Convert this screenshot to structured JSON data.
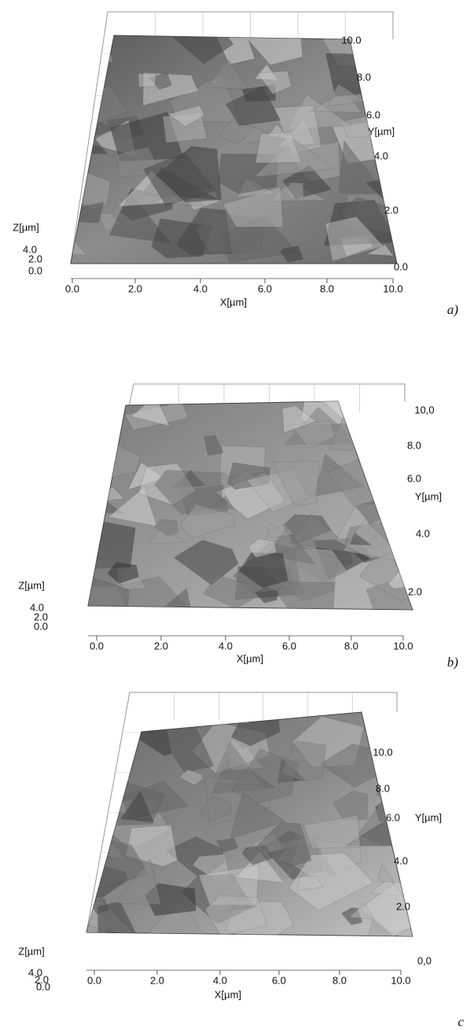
{
  "panels": [
    {
      "label": "a)",
      "x_axis": "X[µm]",
      "y_axis": "Y[µm]",
      "z_axis": "Z[µm]",
      "x_ticks": [
        "0.0",
        "2.0",
        "4.0",
        "6.0",
        "8.0",
        "10.0"
      ],
      "y_ticks": [
        "10.0",
        "8.0",
        "6.0",
        "4.0",
        "2.0",
        "0.0"
      ],
      "z_ticks": [
        "4.0",
        "2.0",
        "0.0"
      ]
    },
    {
      "label": "b)",
      "x_axis": "X[µm]",
      "y_axis": "Y[µm]",
      "z_axis": "Z[µm]",
      "x_ticks": [
        "0.0",
        "2.0",
        "4.0",
        "6.0",
        "8.0",
        "10.0"
      ],
      "y_ticks": [
        "10,0",
        "8.0",
        "6.0",
        "4.0",
        "2.0"
      ],
      "z_ticks": [
        "4.0",
        "2.0",
        "0.0"
      ]
    },
    {
      "label": "c",
      "x_axis": "X[µm]",
      "y_axis": "Y[µm]",
      "z_axis": "Z[µm]",
      "x_ticks": [
        "0.0",
        "2.0",
        "4.0",
        "6.0",
        "8.0",
        "10.0"
      ],
      "y_ticks": [
        "10.0",
        "8.0",
        "6.0",
        "4.0",
        "2.0",
        "0,0"
      ],
      "z_ticks": [
        "4.0",
        "2.0",
        "0.0"
      ]
    }
  ]
}
